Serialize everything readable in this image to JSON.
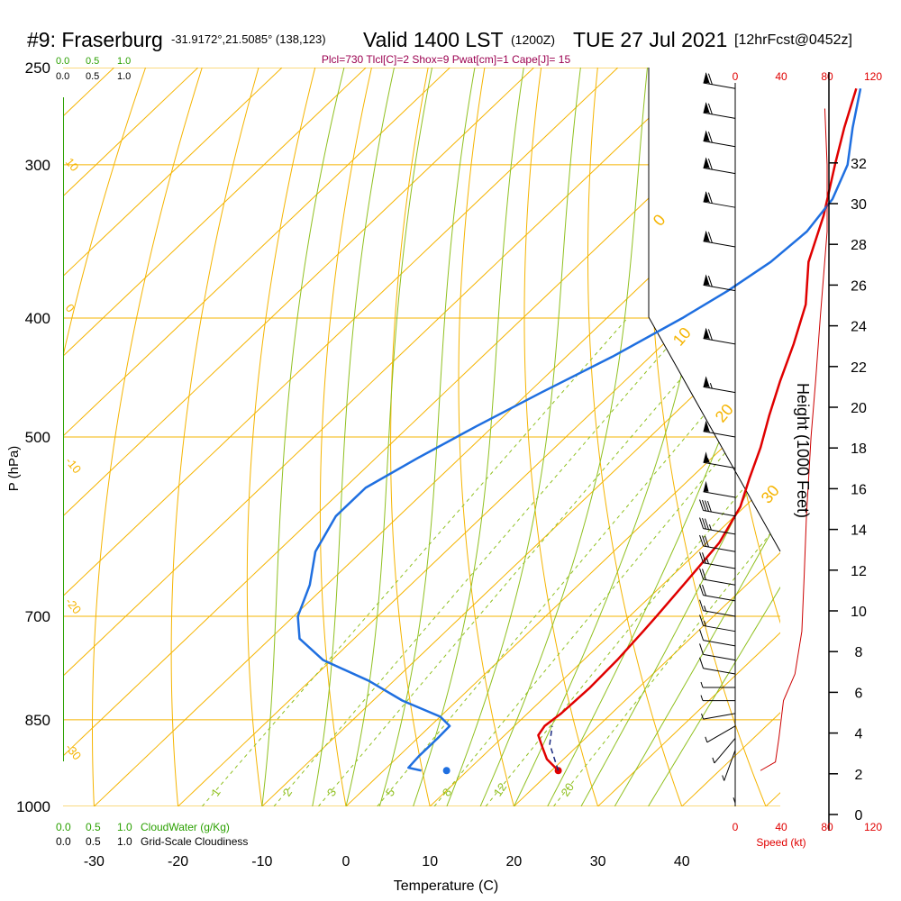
{
  "header": {
    "station": "#9: Fraserburg",
    "coords": "-31.9172°,21.5085° (138,123)",
    "valid_main": "Valid 1400 LST",
    "valid_z": "(1200Z)",
    "date": "TUE 27 Jul 2021",
    "forecast": "[12hrFcst@0452z]",
    "indices": "Plcl=730 Tlcl[C]=2 Shox=9 Pwat[cm]=1 Cape[J]= 15"
  },
  "colors": {
    "temperature": "#e00000",
    "dewpoint": "#1f6fe0",
    "isotherm": "#f5b400",
    "dry_adiabat": "#f5b400",
    "moist_adiabat": "#90c020",
    "mixing_ratio": "#90c020",
    "wind_profile": "#cc0000",
    "indices_text": "#9b0050",
    "cloud_text": "#2aa000"
  },
  "cloud_scales": {
    "top_water": [
      "0.0",
      "0.5",
      "1.0"
    ],
    "top_cover": [
      "0.0",
      "0.5",
      "1.0"
    ],
    "bottom_water": [
      "0.0",
      "0.5",
      "1.0"
    ],
    "bottom_water_label": "CloudWater (g/Kg)",
    "bottom_cover": [
      "0.0",
      "0.5",
      "1.0"
    ],
    "bottom_cover_label": "Grid-Scale Cloudiness"
  },
  "speed_axis": {
    "ticks": [
      "0",
      "40",
      "80",
      "120"
    ],
    "label": "Speed (kt)"
  },
  "chart_data": {
    "type": "line",
    "title": "#9: Fraserburg Valid 1400 LST TUE 27 Jul 2021",
    "xlabel": "Temperature (C)",
    "ylabel": "P (hPa)",
    "y2label": "Height (1000 Feet)",
    "x_ticks": [
      -30,
      -20,
      -10,
      0,
      10,
      20,
      30,
      40
    ],
    "p_ticks": [
      250,
      300,
      400,
      500,
      700,
      850,
      1000
    ],
    "height_ticks": [
      0,
      2,
      4,
      6,
      8,
      10,
      12,
      14,
      16,
      18,
      20,
      22,
      24,
      26,
      28,
      30,
      32
    ],
    "isotherm_labels": [
      0,
      10,
      20,
      30
    ],
    "dry_adiabat_labels": [
      10,
      0,
      -10,
      -20,
      -30
    ],
    "mixing_ratio_labels": [
      1,
      2,
      3,
      5,
      8,
      12,
      20
    ],
    "series": [
      {
        "name": "Temperature",
        "points": [
          [
            20.8,
            935
          ],
          [
            18,
            915
          ],
          [
            16,
            895
          ],
          [
            14,
            875
          ],
          [
            13.6,
            860
          ],
          [
            14,
            840
          ],
          [
            14.2,
            800
          ],
          [
            14,
            760
          ],
          [
            13.5,
            720
          ],
          [
            13.2,
            700
          ],
          [
            12.5,
            660
          ],
          [
            11.5,
            610
          ],
          [
            9.5,
            570
          ],
          [
            7,
            540
          ],
          [
            4.5,
            510
          ],
          [
            1.5,
            480
          ],
          [
            -1.5,
            450
          ],
          [
            -4.5,
            420
          ],
          [
            -8,
            390
          ],
          [
            -13,
            360
          ],
          [
            -17,
            330
          ],
          [
            -22,
            300
          ],
          [
            -25.5,
            280
          ],
          [
            -29,
            260
          ]
        ]
      },
      {
        "name": "Dewpoint",
        "points": [
          [
            4.5,
            935
          ],
          [
            2.6,
            930
          ],
          [
            2.4,
            910
          ],
          [
            2.4,
            880
          ],
          [
            2.3,
            860
          ],
          [
            0,
            845
          ],
          [
            -6.5,
            820
          ],
          [
            -13,
            790
          ],
          [
            -21,
            760
          ],
          [
            -26.5,
            730
          ],
          [
            -29.5,
            700
          ],
          [
            -32,
            660
          ],
          [
            -35.5,
            620
          ],
          [
            -37.5,
            580
          ],
          [
            -37.5,
            550
          ],
          [
            -35,
            520
          ],
          [
            -32,
            490
          ],
          [
            -28.5,
            460
          ],
          [
            -24.5,
            430
          ],
          [
            -21,
            400
          ],
          [
            -19,
            380
          ],
          [
            -17.5,
            360
          ],
          [
            -17,
            340
          ],
          [
            -18,
            320
          ],
          [
            -20.5,
            300
          ],
          [
            -24.5,
            280
          ],
          [
            -28.5,
            260
          ]
        ]
      },
      {
        "name": "Surface dewpoint",
        "points": [
          [
            7.5,
            935
          ]
        ]
      },
      {
        "name": "Wind speed (kt)",
        "points": [
          [
            22,
            935
          ],
          [
            35,
            920
          ],
          [
            38,
            880
          ],
          [
            40,
            850
          ],
          [
            42,
            820
          ],
          [
            52,
            780
          ],
          [
            58,
            720
          ],
          [
            60,
            650
          ],
          [
            62,
            580
          ],
          [
            66,
            500
          ],
          [
            70,
            450
          ],
          [
            74,
            400
          ],
          [
            80,
            340
          ],
          [
            80,
            300
          ],
          [
            78,
            270
          ]
        ]
      }
    ],
    "wind_barbs": [
      {
        "p": 935,
        "dir": 180,
        "kt": 5
      },
      {
        "p": 900,
        "dir": 200,
        "kt": 5
      },
      {
        "p": 880,
        "dir": 220,
        "kt": 5
      },
      {
        "p": 860,
        "dir": 240,
        "kt": 5
      },
      {
        "p": 840,
        "dir": 260,
        "kt": 5
      },
      {
        "p": 820,
        "dir": 270,
        "kt": 5
      },
      {
        "p": 800,
        "dir": 270,
        "kt": 5
      },
      {
        "p": 780,
        "dir": 280,
        "kt": 10
      },
      {
        "p": 760,
        "dir": 280,
        "kt": 10
      },
      {
        "p": 740,
        "dir": 280,
        "kt": 10
      },
      {
        "p": 720,
        "dir": 280,
        "kt": 15
      },
      {
        "p": 700,
        "dir": 280,
        "kt": 15
      },
      {
        "p": 680,
        "dir": 280,
        "kt": 20
      },
      {
        "p": 660,
        "dir": 280,
        "kt": 20
      },
      {
        "p": 640,
        "dir": 280,
        "kt": 25
      },
      {
        "p": 620,
        "dir": 280,
        "kt": 30
      },
      {
        "p": 600,
        "dir": 280,
        "kt": 35
      },
      {
        "p": 580,
        "dir": 280,
        "kt": 40
      },
      {
        "p": 560,
        "dir": 280,
        "kt": 50
      },
      {
        "p": 530,
        "dir": 280,
        "kt": 55
      },
      {
        "p": 500,
        "dir": 280,
        "kt": 60
      },
      {
        "p": 460,
        "dir": 280,
        "kt": 65
      },
      {
        "p": 420,
        "dir": 280,
        "kt": 70
      },
      {
        "p": 380,
        "dir": 280,
        "kt": 70
      },
      {
        "p": 350,
        "dir": 280,
        "kt": 70
      },
      {
        "p": 325,
        "dir": 280,
        "kt": 70
      },
      {
        "p": 305,
        "dir": 280,
        "kt": 70
      },
      {
        "p": 290,
        "dir": 280,
        "kt": 70
      },
      {
        "p": 275,
        "dir": 280,
        "kt": 70
      },
      {
        "p": 260,
        "dir": 280,
        "kt": 70
      }
    ]
  }
}
